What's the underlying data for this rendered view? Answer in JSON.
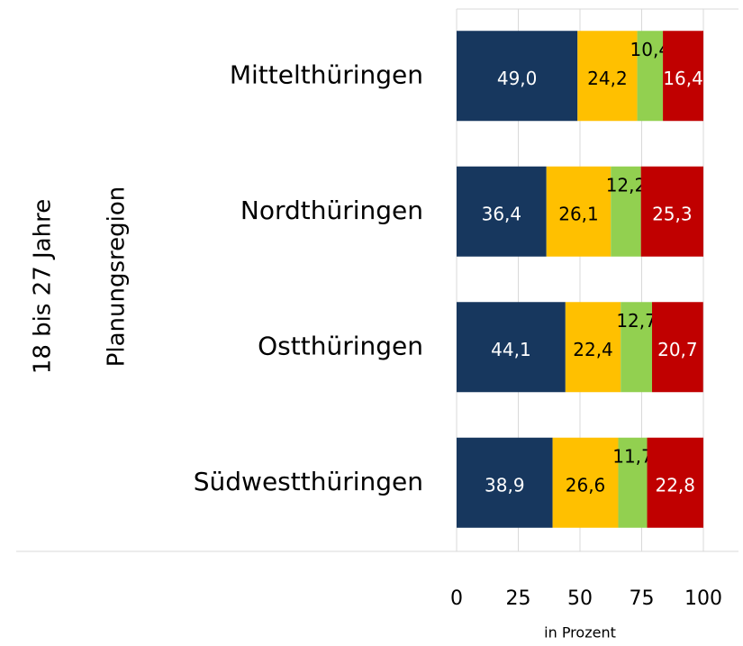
{
  "chart_data": {
    "type": "stacked_barh",
    "group_labels": [
      "18 bis 27 Jahre",
      "Planungsregion"
    ],
    "categories": [
      "Mittelthüringen",
      "Nordthüringen",
      "Ostthüringen",
      "Südwestthüringen"
    ],
    "series": [
      {
        "color": "#17375e",
        "label_color": "#ffffff",
        "values": [
          49.0,
          36.4,
          44.1,
          38.9
        ],
        "value_labels": [
          "49,0",
          "36,4",
          "44,1",
          "38,9"
        ]
      },
      {
        "color": "#ffc000",
        "label_color": "#000000",
        "values": [
          24.2,
          26.1,
          22.4,
          26.6
        ],
        "value_labels": [
          "24,2",
          "26,1",
          "22,4",
          "26,6"
        ]
      },
      {
        "color": "#92d050",
        "label_color": "#000000",
        "values": [
          10.4,
          12.2,
          12.7,
          11.7
        ],
        "value_labels": [
          "10,4",
          "12,2",
          "12,7",
          "11,7"
        ]
      },
      {
        "color": "#c00000",
        "label_color": "#ffffff",
        "values": [
          16.4,
          25.3,
          20.7,
          22.8
        ],
        "value_labels": [
          "16,4",
          "25,3",
          "20,7",
          "22,8"
        ]
      }
    ],
    "xlabel": "in Prozent",
    "xlim": [
      0,
      100
    ],
    "xticks": [
      0,
      25,
      50,
      75,
      100
    ],
    "grid": true
  }
}
